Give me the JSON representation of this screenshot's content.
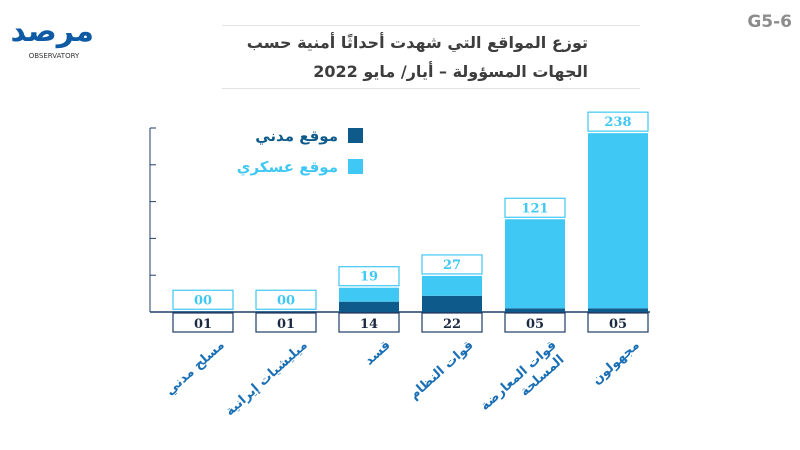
{
  "header": {
    "code": "G5-6",
    "title_line1": "توزع المواقع التي شهدت أحداثًا أمنية حسب",
    "title_line2": "الجهات المسؤولة – أيار/ مايو 2022"
  },
  "logo": {
    "text": "مرصد",
    "subtitle": "OBSERVATORY"
  },
  "colors": {
    "civilian": "#0e5a8a",
    "military": "#40c8f4",
    "axis": "#1f3d66",
    "label": "#1a6fb5"
  },
  "chart_data": {
    "type": "bar",
    "stacked": true,
    "title": "توزع المواقع التي شهدت أحداثًا أمنية حسب الجهات المسؤولة – أيار/ مايو 2022",
    "categories": [
      "مسلح مدني",
      "ميليشيات إيرانية",
      "قسد",
      "قوات النظام",
      "قوات المعارضة المسلحة",
      "مجهولون"
    ],
    "series": [
      {
        "name": "موقع مدني",
        "values": [
          1,
          1,
          14,
          22,
          5,
          5
        ],
        "labels": [
          "01",
          "01",
          "14",
          "22",
          "05",
          "05"
        ]
      },
      {
        "name": "موقع عسكري",
        "values": [
          0,
          0,
          19,
          27,
          121,
          238
        ],
        "labels": [
          "00",
          "00",
          "19",
          "27",
          "121",
          "238"
        ]
      }
    ],
    "ylim": [
      0,
      250
    ],
    "grid": false,
    "legend_position": "top-left"
  }
}
